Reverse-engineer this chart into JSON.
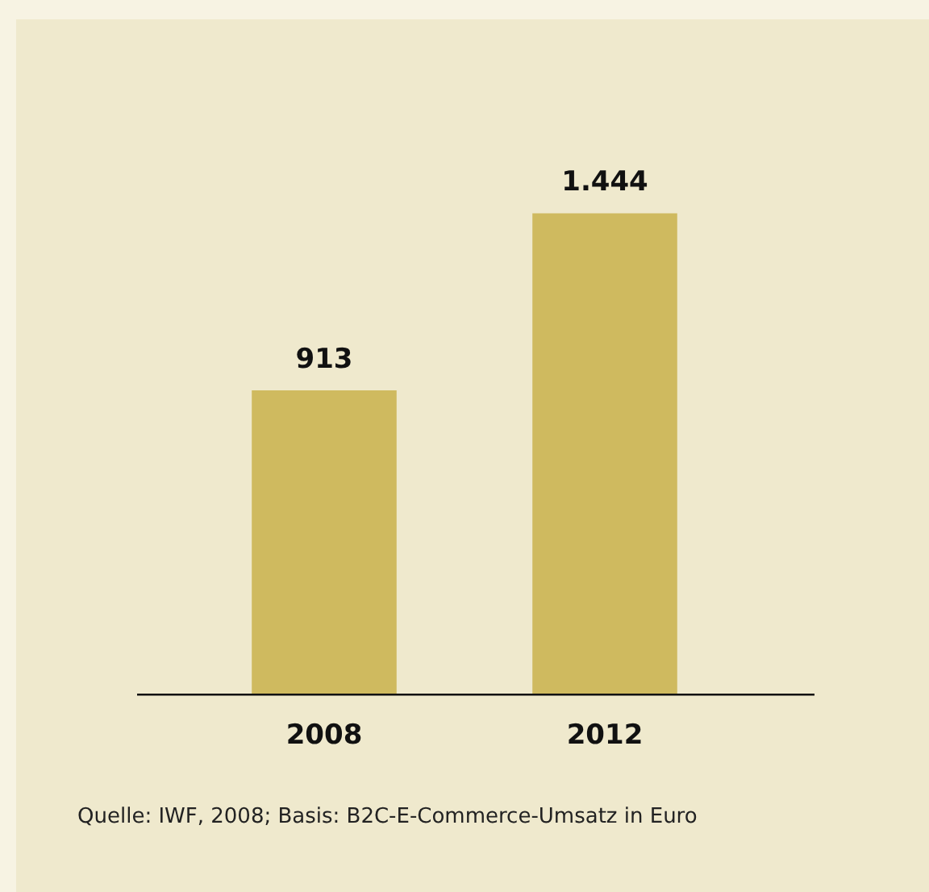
{
  "chart_data": {
    "type": "bar",
    "categories": [
      "2008",
      "2012"
    ],
    "values": [
      913,
      1444
    ],
    "value_labels": [
      "913",
      "1.444"
    ],
    "color": "#cfba5f",
    "tick_labels": "x",
    "grid": false,
    "legend": false,
    "annotations": [
      "Quelle: IWF, 2008; Basis: B2C-E-Commerce-Umsatz in Euro"
    ]
  }
}
